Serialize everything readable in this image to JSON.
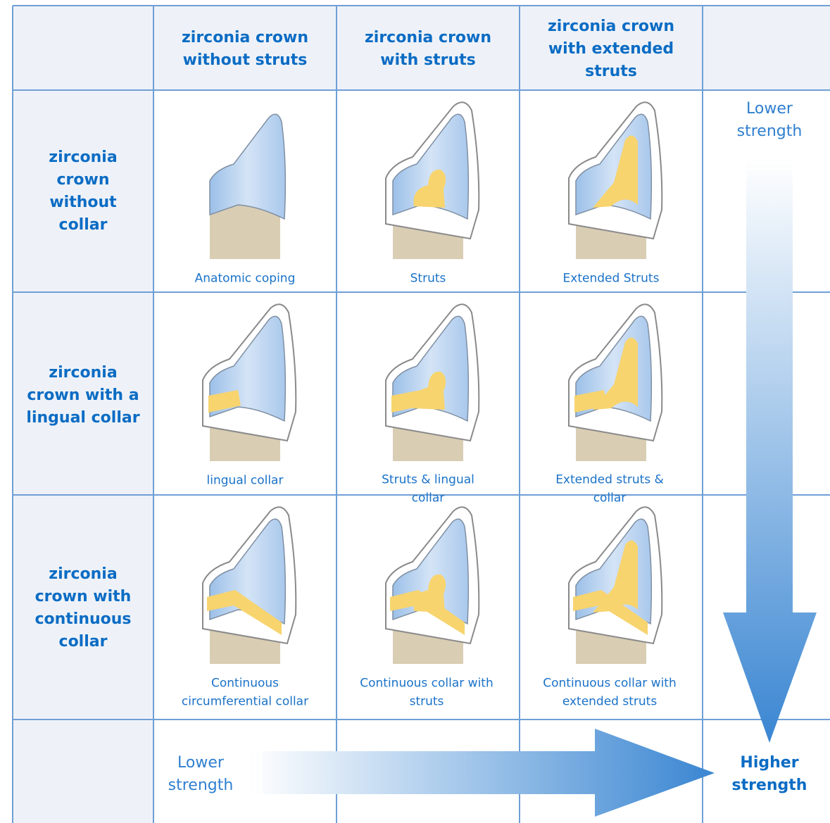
{
  "columns": [
    "zirconia crown without struts",
    "zirconia crown with struts",
    "zirconia crown with extended struts"
  ],
  "rows": [
    {
      "label": "zirconia crown without collar",
      "cells": [
        "Anatomic coping",
        "Struts",
        "Extended Struts"
      ]
    },
    {
      "label": "zirconia crown with a lingual collar",
      "cells": [
        "lingual collar",
        "Struts & lingual collar",
        "Extended struts & collar"
      ]
    },
    {
      "label": "zirconia crown with continuous collar",
      "cells": [
        "Continuous circumferential collar",
        "Continuous collar with struts",
        "Continuous collar with extended struts"
      ]
    }
  ],
  "vertical_arrow": {
    "label": "Lower strength"
  },
  "horizontal_arrow": {
    "start": "Lower strength",
    "end": "Higher strength"
  }
}
